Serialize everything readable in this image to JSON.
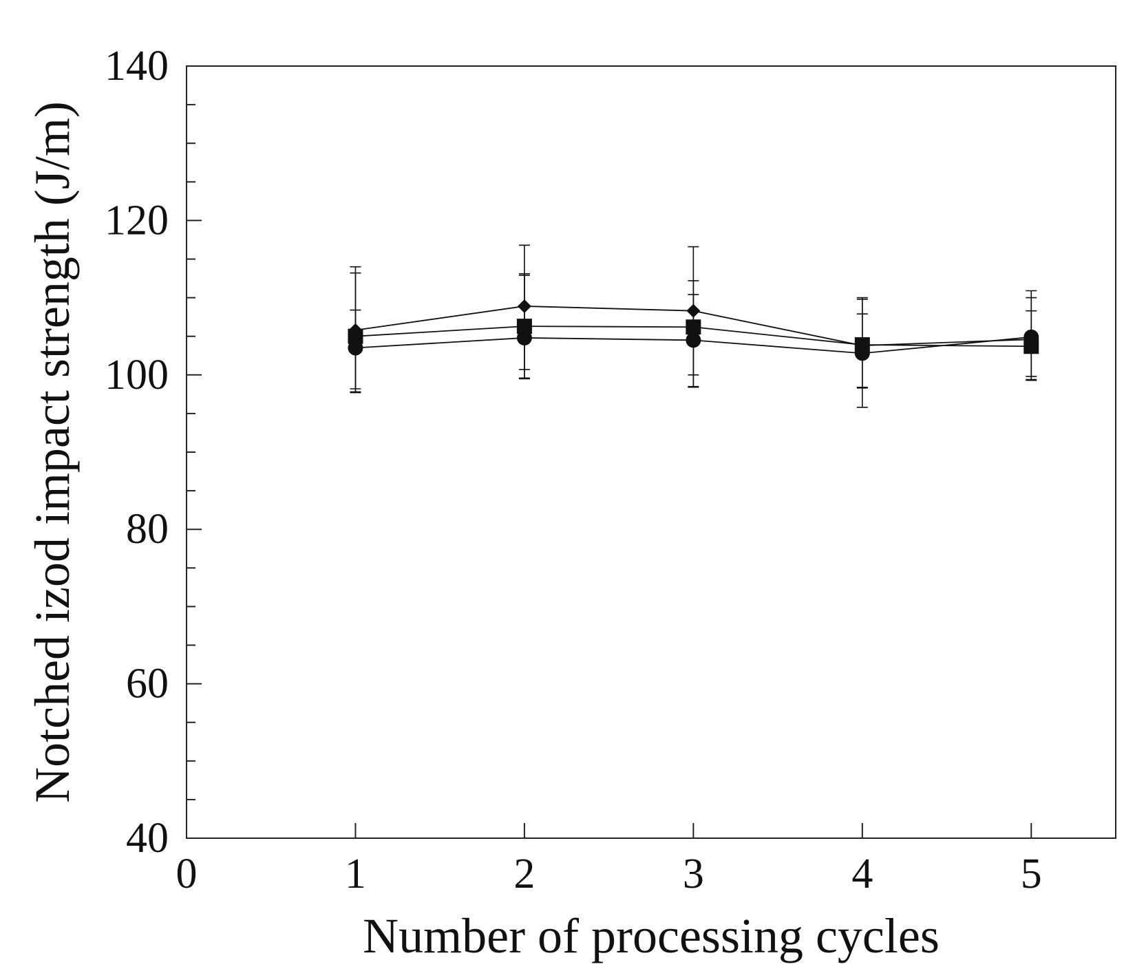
{
  "chart_data": {
    "type": "line",
    "title": "",
    "xlabel": "Number of processing cycles",
    "ylabel": "Notched izod impact strength (J/m)",
    "xlim": [
      0,
      5.5
    ],
    "ylim": [
      40,
      140
    ],
    "x": [
      1,
      2,
      3,
      4,
      5
    ],
    "xticks": [
      0,
      1,
      2,
      3,
      4,
      5
    ],
    "xtick_labels": [
      "0",
      "1",
      "2",
      "3",
      "4",
      "5"
    ],
    "yticks": [
      40,
      60,
      80,
      100,
      120,
      140
    ],
    "ytick_labels": [
      "40",
      "60",
      "80",
      "100",
      "120",
      "140"
    ],
    "y_minor_step": 5,
    "grid": false,
    "legend": "none",
    "series": [
      {
        "name": "diamond series",
        "marker": "diamond",
        "values": [
          105.8,
          108.9,
          108.3,
          103.8,
          104.6
        ],
        "err_low": [
          98.2,
          99.6,
          100.0,
          98.4,
          99.3
        ],
        "err_high": [
          114.0,
          116.8,
          116.6,
          109.8,
          110.9
        ]
      },
      {
        "name": "square series",
        "marker": "square",
        "values": [
          105.0,
          106.3,
          106.2,
          103.9,
          103.7
        ],
        "err_low": [
          97.8,
          99.5,
          98.4,
          98.3,
          99.4
        ],
        "err_high": [
          113.2,
          113.1,
          112.2,
          110.0,
          108.3
        ]
      },
      {
        "name": "circle series",
        "marker": "circle",
        "values": [
          103.5,
          104.8,
          104.5,
          102.8,
          104.9
        ],
        "err_low": [
          97.7,
          100.7,
          98.5,
          95.8,
          99.8
        ],
        "err_high": [
          108.4,
          112.9,
          110.4,
          107.9,
          110.0
        ]
      }
    ],
    "line_color": "#111111",
    "marker_color": "#111111"
  }
}
